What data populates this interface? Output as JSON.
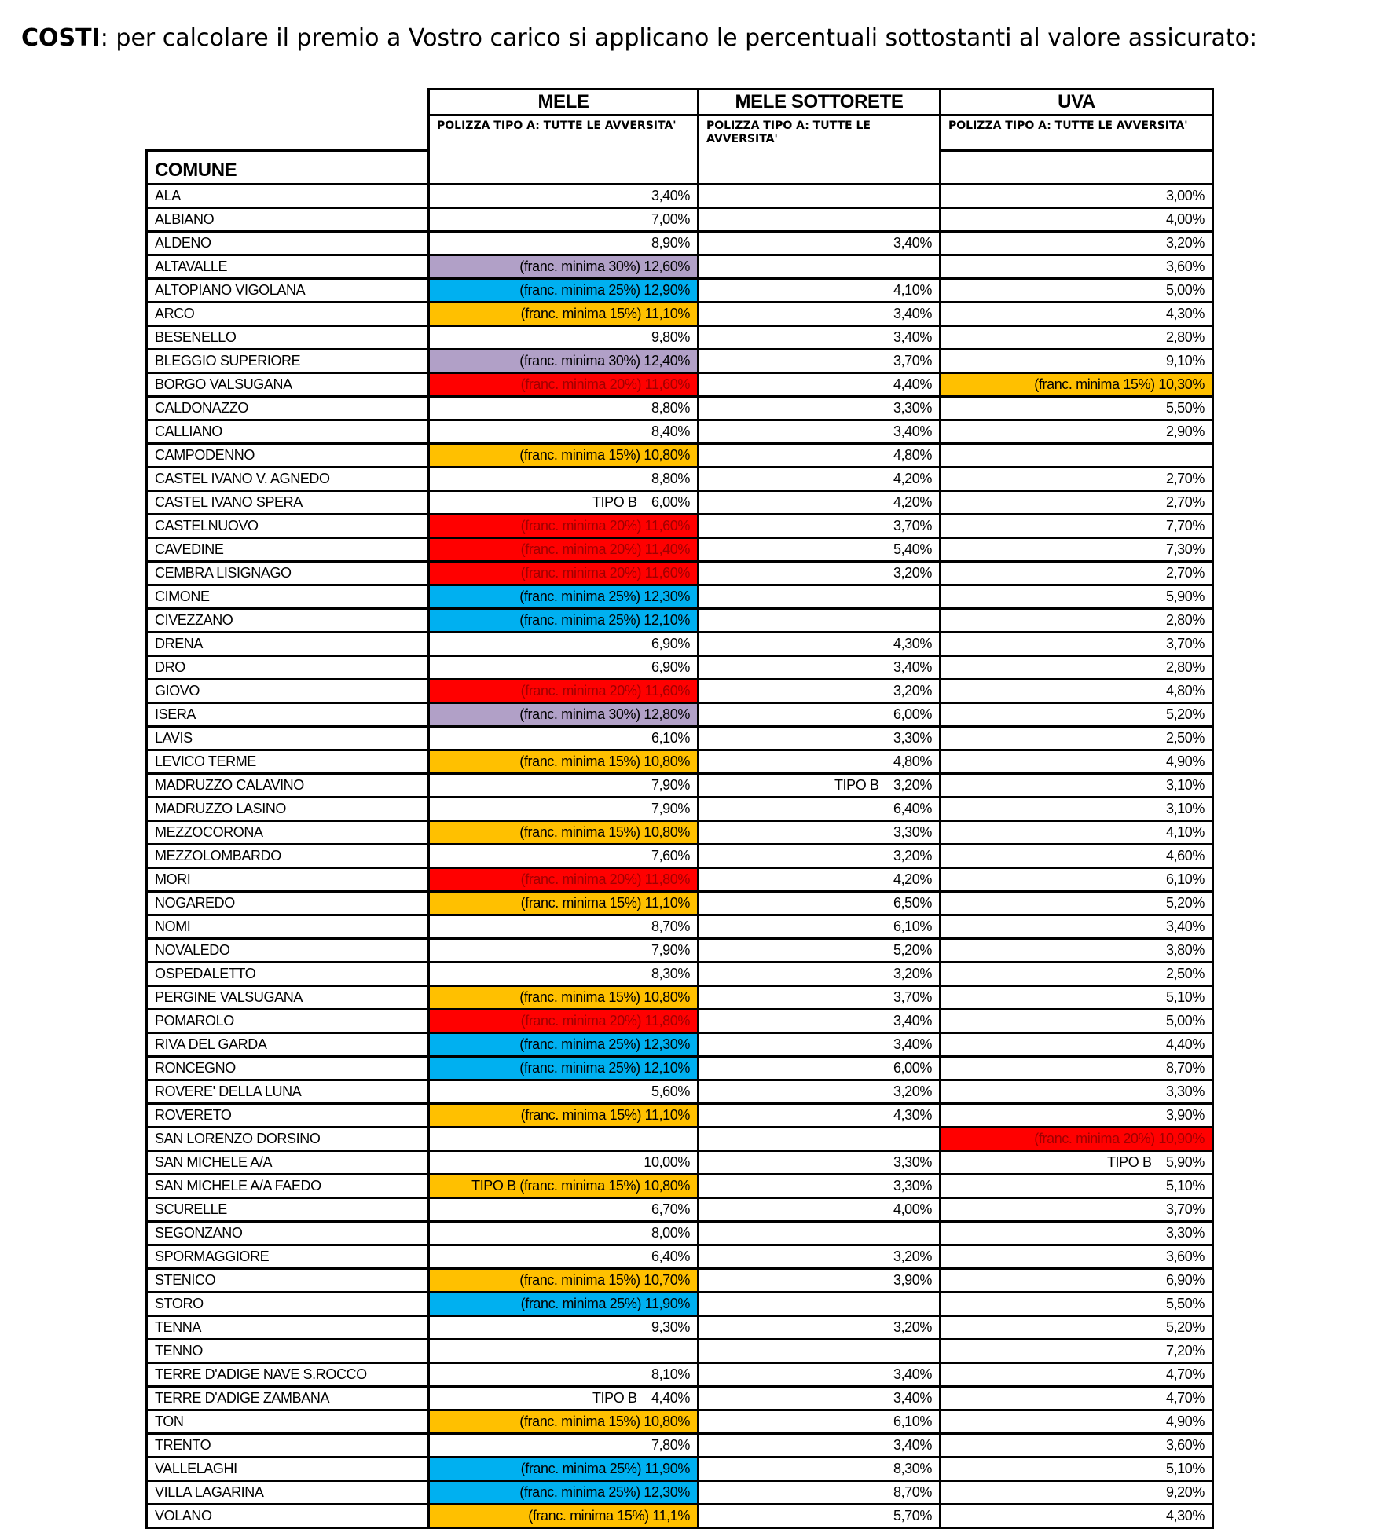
{
  "intro": {
    "bold": "COSTI",
    "text": ": per calcolare il premio a Vostro carico si applicano le percentuali sottostanti al valore assicurato:"
  },
  "table": {
    "columns": [
      "MELE",
      "MELE SOTTORETE",
      "UVA"
    ],
    "subheader": "POLIZZA TIPO A:    TUTTE LE AVVERSITA'",
    "comune_label": "COMUNE",
    "colors": {
      "purple": "#b1a0c7",
      "blue": "#00b0f0",
      "orange": "#ffc000",
      "red": "#ff0000"
    },
    "rows": [
      [
        "ALA",
        "3,40%",
        "",
        "",
        "3,00%",
        ""
      ],
      [
        "ALBIANO",
        "7,00%",
        "",
        "",
        "4,00%",
        ""
      ],
      [
        "ALDENO",
        "8,90%",
        "",
        "3,40%",
        "3,20%",
        ""
      ],
      [
        "ALTAVALLE",
        "(franc. minima 30%) 12,60%",
        "purple",
        "",
        "3,60%",
        ""
      ],
      [
        "ALTOPIANO VIGOLANA",
        "(franc. minima 25%) 12,90%",
        "blue",
        "4,10%",
        "5,00%",
        ""
      ],
      [
        "ARCO",
        "(franc. minima 15%) 11,10%",
        "orange",
        "3,40%",
        "4,30%",
        ""
      ],
      [
        "BESENELLO",
        "9,80%",
        "",
        "3,40%",
        "2,80%",
        ""
      ],
      [
        "BLEGGIO SUPERIORE",
        "(franc. minima 30%) 12,40%",
        "purple",
        "3,70%",
        "9,10%",
        ""
      ],
      [
        "BORGO VALSUGANA",
        "(franc. minima 20%) 11,60%",
        "red",
        "4,40%",
        "(franc. minima 15%) 10,30%",
        "orange"
      ],
      [
        "CALDONAZZO",
        "8,80%",
        "",
        "3,30%",
        "5,50%",
        ""
      ],
      [
        "CALLIANO",
        "8,40%",
        "",
        "3,40%",
        "2,90%",
        ""
      ],
      [
        "CAMPODENNO",
        "(franc. minima 15%) 10,80%",
        "orange",
        "4,80%",
        "",
        ""
      ],
      [
        "CASTEL IVANO V. AGNEDO",
        "8,80%",
        "",
        "4,20%",
        "2,70%",
        ""
      ],
      [
        "CASTEL IVANO SPERA",
        "TIPO B    6,00%",
        "",
        "4,20%",
        "2,70%",
        ""
      ],
      [
        "CASTELNUOVO",
        "(franc. minima 20%) 11,60%",
        "red",
        "3,70%",
        "7,70%",
        ""
      ],
      [
        "CAVEDINE",
        "(franc. minima 20%) 11,40%",
        "red",
        "5,40%",
        "7,30%",
        ""
      ],
      [
        "CEMBRA LISIGNAGO",
        "(franc. minima 20%) 11,60%",
        "red",
        "3,20%",
        "2,70%",
        ""
      ],
      [
        "CIMONE",
        "(franc. minima 25%) 12,30%",
        "blue",
        "",
        "5,90%",
        ""
      ],
      [
        "CIVEZZANO",
        "(franc. minima 25%) 12,10%",
        "blue",
        "",
        "2,80%",
        ""
      ],
      [
        "DRENA",
        "6,90%",
        "",
        "4,30%",
        "3,70%",
        ""
      ],
      [
        "DRO",
        "6,90%",
        "",
        "3,40%",
        "2,80%",
        ""
      ],
      [
        "GIOVO",
        "(franc. minima 20%) 11,60%",
        "red",
        "3,20%",
        "4,80%",
        ""
      ],
      [
        "ISERA",
        "(franc. minima 30%) 12,80%",
        "purple",
        "6,00%",
        "5,20%",
        ""
      ],
      [
        "LAVIS",
        "6,10%",
        "",
        "3,30%",
        "2,50%",
        ""
      ],
      [
        "LEVICO TERME",
        "(franc. minima 15%) 10,80%",
        "orange",
        "4,80%",
        "4,90%",
        ""
      ],
      [
        "MADRUZZO CALAVINO",
        "7,90%",
        "",
        "TIPO B    3,20%",
        "3,10%",
        ""
      ],
      [
        "MADRUZZO LASINO",
        "7,90%",
        "",
        "6,40%",
        "3,10%",
        ""
      ],
      [
        "MEZZOCORONA",
        "(franc. minima 15%) 10,80%",
        "orange",
        "3,30%",
        "4,10%",
        ""
      ],
      [
        "MEZZOLOMBARDO",
        "7,60%",
        "",
        "3,20%",
        "4,60%",
        ""
      ],
      [
        "MORI",
        "(franc. minima 20%) 11,80%",
        "red",
        "4,20%",
        "6,10%",
        ""
      ],
      [
        "NOGAREDO",
        "(franc. minima 15%) 11,10%",
        "orange",
        "6,50%",
        "5,20%",
        ""
      ],
      [
        "NOMI",
        "8,70%",
        "",
        "6,10%",
        "3,40%",
        ""
      ],
      [
        "NOVALEDO",
        "7,90%",
        "",
        "5,20%",
        "3,80%",
        ""
      ],
      [
        "OSPEDALETTO",
        "8,30%",
        "",
        "3,20%",
        "2,50%",
        ""
      ],
      [
        "PERGINE VALSUGANA",
        "(franc. minima 15%) 10,80%",
        "orange",
        "3,70%",
        "5,10%",
        ""
      ],
      [
        "POMAROLO",
        "(franc. minima 20%) 11,80%",
        "red",
        "3,40%",
        "5,00%",
        ""
      ],
      [
        "RIVA DEL GARDA",
        "(franc. minima 25%) 12,30%",
        "blue",
        "3,40%",
        "4,40%",
        ""
      ],
      [
        "RONCEGNO",
        "(franc. minima 25%) 12,10%",
        "blue",
        "6,00%",
        "8,70%",
        ""
      ],
      [
        "ROVERE' DELLA LUNA",
        "5,60%",
        "",
        "3,20%",
        "3,30%",
        ""
      ],
      [
        "ROVERETO",
        "(franc. minima 15%) 11,10%",
        "orange",
        "4,30%",
        "3,90%",
        ""
      ],
      [
        "SAN LORENZO DORSINO",
        "",
        "",
        "",
        "(franc. minima 20%) 10,90%",
        "red"
      ],
      [
        "SAN MICHELE A/A",
        "10,00%",
        "",
        "3,30%",
        "TIPO B    5,90%",
        ""
      ],
      [
        "SAN MICHELE A/A FAEDO",
        "TIPO B (franc. minima 15%) 10,80%",
        "orange",
        "3,30%",
        "5,10%",
        ""
      ],
      [
        "SCURELLE",
        "6,70%",
        "",
        "4,00%",
        "3,70%",
        ""
      ],
      [
        "SEGONZANO",
        "8,00%",
        "",
        "",
        "3,30%",
        ""
      ],
      [
        "SPORMAGGIORE",
        "6,40%",
        "",
        "3,20%",
        "3,60%",
        ""
      ],
      [
        "STENICO",
        "(franc. minima 15%) 10,70%",
        "orange",
        "3,90%",
        "6,90%",
        ""
      ],
      [
        "STORO",
        "(franc. minima 25%) 11,90%",
        "blue",
        "",
        "5,50%",
        ""
      ],
      [
        "TENNA",
        "9,30%",
        "",
        "3,20%",
        "5,20%",
        ""
      ],
      [
        "TENNO",
        "",
        "",
        "",
        "7,20%",
        ""
      ],
      [
        "TERRE D'ADIGE NAVE S.ROCCO",
        "8,10%",
        "",
        "3,40%",
        "4,70%",
        ""
      ],
      [
        "TERRE D'ADIGE ZAMBANA",
        "TIPO B    4,40%",
        "",
        "3,40%",
        "4,70%",
        ""
      ],
      [
        "TON",
        "(franc. minima 15%) 10,80%",
        "orange",
        "6,10%",
        "4,90%",
        ""
      ],
      [
        "TRENTO",
        "7,80%",
        "",
        "3,40%",
        "3,60%",
        ""
      ],
      [
        "VALLELAGHI",
        "(franc. minima 25%) 11,90%",
        "blue",
        "8,30%",
        "5,10%",
        ""
      ],
      [
        "VILLA LAGARINA",
        "(franc. minima 25%) 12,30%",
        "blue",
        "8,70%",
        "9,20%",
        ""
      ],
      [
        "VOLANO",
        "(franc. minima 15%) 11,1%",
        "orange",
        "5,70%",
        "4,30%",
        ""
      ]
    ]
  }
}
